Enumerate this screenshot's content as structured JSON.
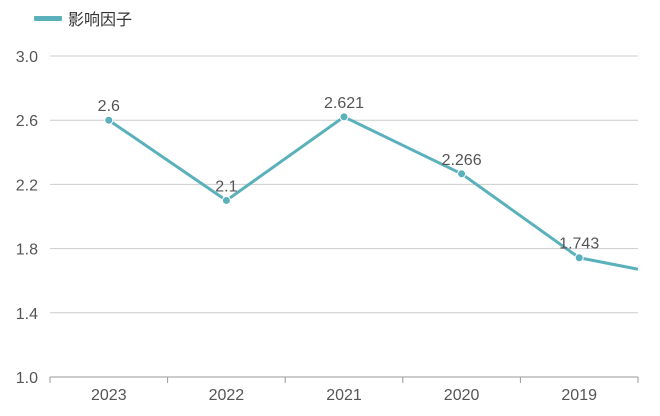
{
  "chart_data": {
    "type": "line",
    "title": "",
    "xlabel": "",
    "ylabel": "",
    "categories": [
      "2023",
      "2022",
      "2021",
      "2020",
      "2019"
    ],
    "series": [
      {
        "name": "影响因子",
        "values": [
          2.6,
          2.1,
          2.621,
          2.266,
          1.743
        ],
        "labels": [
          "2.6",
          "2.1",
          "2.621",
          "2.266",
          "1.743"
        ],
        "trailing_value": 1.6
      }
    ],
    "ylim": [
      1.0,
      3.0
    ],
    "yticks": [
      "1.0",
      "1.4",
      "1.8",
      "2.2",
      "2.6",
      "3.0"
    ],
    "grid": true,
    "legend_position": "top-left",
    "colors": {
      "series": "#5AB1BB",
      "grid": "#CCCCCC",
      "axis": "#999999"
    }
  }
}
